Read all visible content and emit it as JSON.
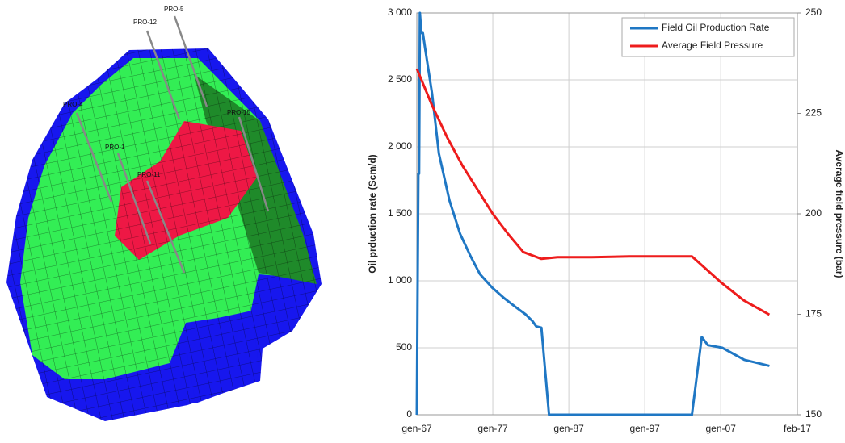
{
  "reservoir_model": {
    "wells": [
      "PRO-5",
      "PRO-12",
      "PRO-4",
      "PRO-1",
      "PRO-11",
      "PRO-15"
    ]
  },
  "chart_data": {
    "type": "line",
    "y_label": "Oil prduction rate (Scm/d)",
    "y2_label": "Average field pressure (bar)",
    "xlim": [
      1967.0,
      2017.08
    ],
    "xticks": [
      {
        "value": 1967.0,
        "label": "gen-67"
      },
      {
        "value": 1977.0,
        "label": "gen-77"
      },
      {
        "value": 1987.0,
        "label": "gen-87"
      },
      {
        "value": 1997.0,
        "label": "gen-97"
      },
      {
        "value": 2007.0,
        "label": "gen-07"
      },
      {
        "value": 2017.08,
        "label": "feb-17"
      }
    ],
    "ylim": [
      0,
      3000
    ],
    "yticks": [
      0,
      500,
      {
        "value": 1000,
        "label": "1 000"
      },
      {
        "value": 1500,
        "label": "1 500"
      },
      {
        "value": 2000,
        "label": "2 000"
      },
      {
        "value": 2500,
        "label": "2 500"
      },
      {
        "value": 3000,
        "label": "3 000"
      }
    ],
    "y2lim": [
      150,
      250
    ],
    "y2ticks": [
      150,
      175,
      200,
      225,
      250
    ],
    "grid": true,
    "legend": "top-right",
    "series": [
      {
        "name": "Field Oil Production Rate",
        "color": "#1f77c4",
        "x": [
          1967.0,
          1967.1,
          1967.2,
          1967.3,
          1967.4,
          1967.6,
          1967.8,
          1968.05,
          1969.0,
          1969.9,
          1971.3,
          1972.7,
          1974.1,
          1975.3,
          1976.9,
          1978.5,
          1980.1,
          1981.3,
          1982.2,
          1982.7,
          1983.4,
          1984.4,
          2003.2,
          2004.5,
          2005.3,
          2007.2,
          2010.1,
          2011.6,
          2013.4
        ],
        "values": [
          0,
          900,
          1800,
          1800,
          3000,
          2850,
          2850,
          2750,
          2400,
          1950,
          1600,
          1350,
          1180,
          1050,
          950,
          870,
          800,
          750,
          700,
          660,
          650,
          0,
          0,
          580,
          520,
          500,
          410,
          390,
          365
        ]
      },
      {
        "name": "Average Field Pressure",
        "color": "#ee1c1c",
        "axis": "y2",
        "x": [
          1967.0,
          1969.0,
          1971.0,
          1973.0,
          1975.0,
          1977.0,
          1979.0,
          1981.0,
          1983.4,
          1985.5,
          1990.0,
          1995.0,
          2003.2,
          2007.0,
          2010.0,
          2013.4
        ],
        "values": [
          236.1,
          227,
          219,
          212,
          206,
          200,
          195,
          190.5,
          188.8,
          189.2,
          189.2,
          189.4,
          189.4,
          183,
          178.5,
          174.9
        ]
      }
    ]
  }
}
